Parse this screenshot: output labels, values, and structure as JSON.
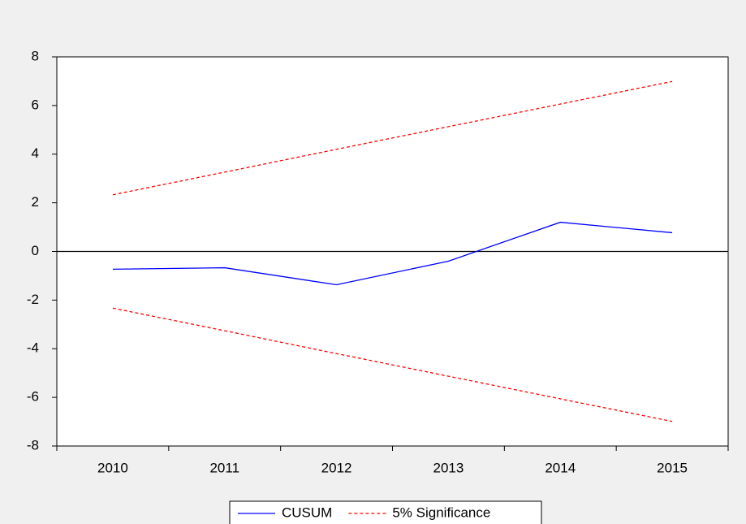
{
  "chart_data": {
    "type": "line",
    "categories": [
      "2010",
      "2011",
      "2012",
      "2013",
      "2014",
      "2015"
    ],
    "series": [
      {
        "name": "CUSUM",
        "color": "#0000ff",
        "dashed": false,
        "values": [
          -0.73,
          -0.67,
          -1.37,
          -0.4,
          1.2,
          0.77
        ]
      },
      {
        "name": "5% Significance",
        "color": "#ff0000",
        "dashed": true,
        "values": [
          2.33,
          3.26,
          4.2,
          5.13,
          6.06,
          6.99
        ]
      },
      {
        "color": "#ff0000",
        "dashed": true,
        "values": [
          -2.33,
          -3.26,
          -4.2,
          -5.13,
          -6.06,
          -6.99
        ]
      }
    ],
    "ylim": [
      -8,
      8
    ],
    "yticks": [
      -8,
      -6,
      -4,
      -2,
      0,
      2,
      4,
      6,
      8
    ],
    "zero_line": true,
    "legend": "bottom"
  }
}
